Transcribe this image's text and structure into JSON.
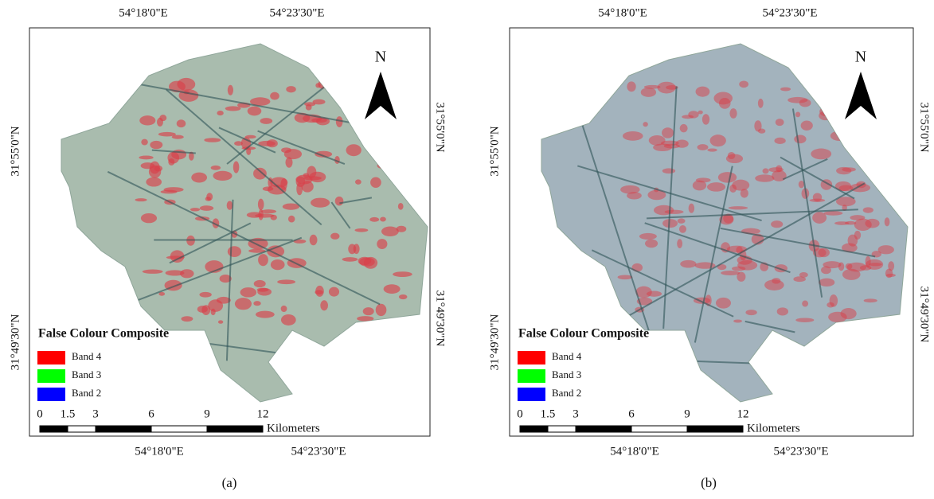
{
  "panels": [
    {
      "label": "(a)",
      "top_labels": [
        "54°18'0\"E",
        "54°23'30\"E"
      ],
      "bottom_labels": [
        "54°18'0\"E",
        "54°23'30\"E"
      ],
      "left_labels": [
        "31°55'0\"N",
        "31°49'30\"N"
      ],
      "right_labels": [
        "31°55'0\"N",
        "31°49'30\"N"
      ],
      "north": "N",
      "legend": {
        "title": "False Colour Composite",
        "items": [
          {
            "name": "Band 4",
            "color": "#ff0000"
          },
          {
            "name": "Band 3",
            "color": "#00ff00"
          },
          {
            "name": "Band 2",
            "color": "#0000ff"
          }
        ]
      },
      "scale_bar": {
        "ticks": [
          0,
          1.5,
          3,
          6,
          9,
          12
        ],
        "unit": "Kilometers"
      }
    },
    {
      "label": "(b)",
      "top_labels": [
        "54°18'0\"E",
        "54°23'30\"E"
      ],
      "bottom_labels": [
        "54°18'0\"E",
        "54°23'30\"E"
      ],
      "left_labels": [
        "31°55'0\"N",
        "31°49'30\"N"
      ],
      "right_labels": [
        "31°55'0\"N",
        "31°49'30\"N"
      ],
      "north": "N",
      "legend": {
        "title": "False Colour Composite",
        "items": [
          {
            "name": "Band 4",
            "color": "#ff0000"
          },
          {
            "name": "Band 3",
            "color": "#00ff00"
          },
          {
            "name": "Band 2",
            "color": "#0000ff"
          }
        ]
      },
      "scale_bar": {
        "ticks": [
          0,
          1.5,
          3,
          6,
          9,
          12
        ],
        "unit": "Kilometers"
      }
    }
  ]
}
